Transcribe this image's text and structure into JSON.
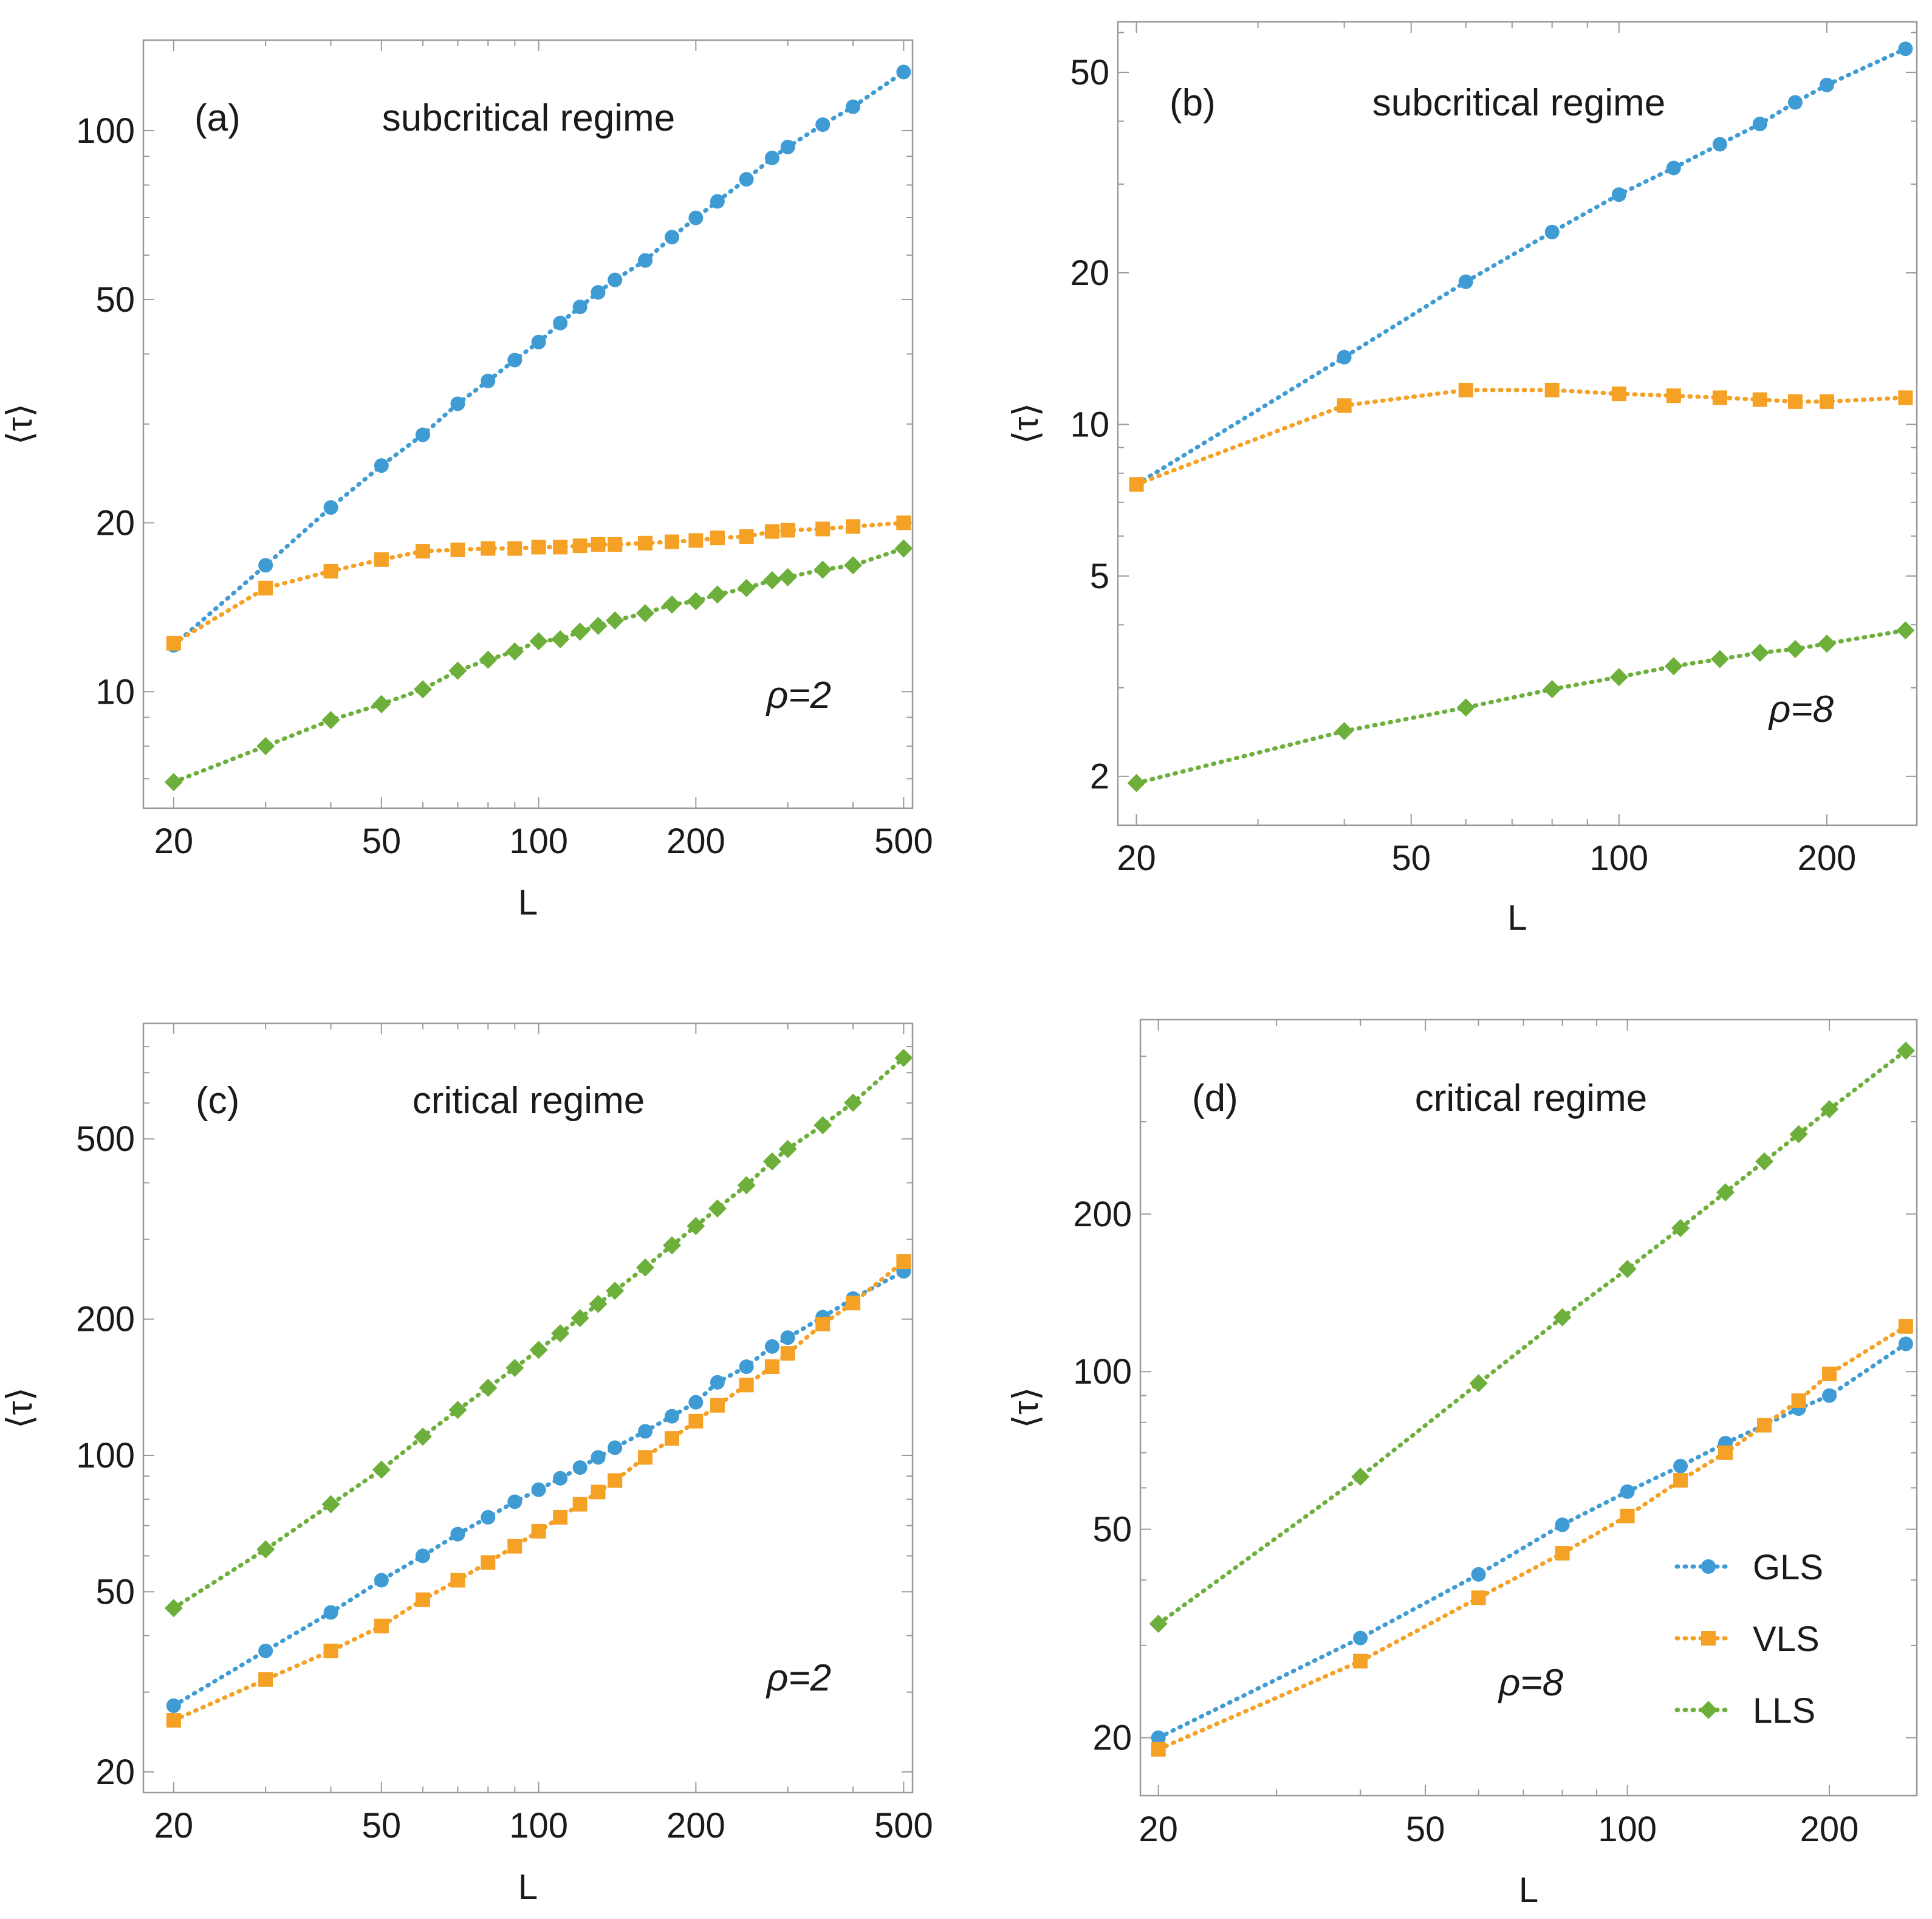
{
  "colors": {
    "GLS": "#3e9bd3",
    "VLS": "#f4a125",
    "LLS": "#6daf3b",
    "frame": "#9a9a9a"
  },
  "legend": {
    "placement": "bottom-right of panel (d)",
    "entries": [
      {
        "name": "GLS",
        "marker": "circle"
      },
      {
        "name": "VLS",
        "marker": "square"
      },
      {
        "name": "LLS",
        "marker": "diamond"
      }
    ]
  },
  "chart_data": [
    {
      "type": "scatter",
      "id": "a",
      "panel_label": "(a)",
      "title": "subcritical regime",
      "annotation": "ρ=2",
      "xlabel": "L",
      "ylabel": "⟨τ⟩",
      "xscale": "log",
      "yscale": "log",
      "xlim": [
        17.5,
        520
      ],
      "ylim": [
        6.2,
        145
      ],
      "xticks": [
        20,
        50,
        100,
        200,
        500
      ],
      "yticks": [
        10,
        20,
        50,
        100
      ],
      "grid": false,
      "series": [
        {
          "name": "GLS",
          "marker": "circle",
          "x": [
            20,
            30,
            40,
            50,
            60,
            70,
            80,
            90,
            100,
            110,
            120,
            130,
            140,
            160,
            180,
            200,
            220,
            250,
            280,
            300,
            350,
            400,
            500
          ],
          "y": [
            12.1,
            16.8,
            21.3,
            25.3,
            28.7,
            32.6,
            35.8,
            39.0,
            42.0,
            45.4,
            48.5,
            51.5,
            54.2,
            58.7,
            64.6,
            69.9,
            74.8,
            81.9,
            89.4,
            93.5,
            102.5,
            110.3,
            127.2
          ]
        },
        {
          "name": "VLS",
          "marker": "square",
          "x": [
            20,
            30,
            40,
            50,
            60,
            70,
            80,
            90,
            100,
            110,
            120,
            130,
            140,
            160,
            180,
            200,
            220,
            250,
            280,
            300,
            350,
            400,
            500
          ],
          "y": [
            12.2,
            15.3,
            16.4,
            17.2,
            17.8,
            17.9,
            18.0,
            18.0,
            18.1,
            18.1,
            18.2,
            18.3,
            18.3,
            18.4,
            18.5,
            18.6,
            18.8,
            18.9,
            19.3,
            19.4,
            19.5,
            19.7,
            20.0
          ]
        },
        {
          "name": "LLS",
          "marker": "diamond",
          "x": [
            20,
            30,
            40,
            50,
            60,
            70,
            80,
            90,
            100,
            110,
            120,
            130,
            140,
            160,
            180,
            200,
            220,
            250,
            280,
            300,
            350,
            400,
            500
          ],
          "y": [
            6.9,
            8.0,
            8.9,
            9.5,
            10.1,
            10.9,
            11.4,
            11.8,
            12.3,
            12.4,
            12.8,
            13.1,
            13.4,
            13.8,
            14.3,
            14.5,
            14.9,
            15.3,
            15.8,
            16.0,
            16.5,
            16.8,
            18.0
          ]
        }
      ]
    },
    {
      "type": "scatter",
      "id": "b",
      "panel_label": "(b)",
      "title": "subcritical regime",
      "annotation": "ρ=8",
      "xlabel": "L",
      "ylabel": "⟨τ⟩",
      "xscale": "log",
      "yscale": "log",
      "xlim": [
        18.8,
        270
      ],
      "ylim": [
        1.6,
        63
      ],
      "xticks": [
        20,
        50,
        100,
        200
      ],
      "yticks": [
        2,
        5,
        10,
        20,
        50
      ],
      "grid": false,
      "series": [
        {
          "name": "GLS",
          "marker": "circle",
          "x": [
            20,
            40,
            60,
            80,
            100,
            120,
            140,
            160,
            180,
            200,
            260
          ],
          "y": [
            7.6,
            13.6,
            19.2,
            24.1,
            28.6,
            32.3,
            36.0,
            39.5,
            43.6,
            47.2,
            55.7
          ]
        },
        {
          "name": "VLS",
          "marker": "square",
          "x": [
            20,
            40,
            60,
            80,
            100,
            120,
            140,
            160,
            180,
            200,
            260
          ],
          "y": [
            7.6,
            10.9,
            11.7,
            11.7,
            11.5,
            11.4,
            11.3,
            11.2,
            11.1,
            11.1,
            11.3
          ]
        },
        {
          "name": "LLS",
          "marker": "diamond",
          "x": [
            20,
            40,
            60,
            80,
            100,
            120,
            140,
            160,
            180,
            200,
            260
          ],
          "y": [
            1.94,
            2.46,
            2.74,
            2.98,
            3.15,
            3.31,
            3.42,
            3.52,
            3.58,
            3.67,
            3.9
          ]
        }
      ]
    },
    {
      "type": "scatter",
      "id": "c",
      "panel_label": "(c)",
      "title": "critical regime",
      "annotation": "ρ=2",
      "xlabel": "L",
      "ylabel": "⟨τ⟩",
      "xscale": "log",
      "yscale": "log",
      "xlim": [
        17.5,
        520
      ],
      "ylim": [
        18,
        900
      ],
      "xticks": [
        20,
        50,
        100,
        200,
        500
      ],
      "yticks": [
        20,
        50,
        100,
        200,
        500
      ],
      "grid": false,
      "series": [
        {
          "name": "GLS",
          "marker": "circle",
          "x": [
            20,
            30,
            40,
            50,
            60,
            70,
            80,
            90,
            100,
            110,
            120,
            130,
            140,
            160,
            180,
            200,
            220,
            250,
            280,
            300,
            350,
            400,
            500
          ],
          "y": [
            28,
            37,
            45,
            53,
            60,
            67,
            73,
            79,
            84,
            89,
            94,
            99,
            104,
            113,
            122,
            131,
            145,
            157,
            174,
            182,
            202,
            222,
            255
          ]
        },
        {
          "name": "VLS",
          "marker": "square",
          "x": [
            20,
            30,
            40,
            50,
            60,
            70,
            80,
            90,
            100,
            110,
            120,
            130,
            140,
            160,
            180,
            200,
            220,
            250,
            280,
            300,
            350,
            400,
            500
          ],
          "y": [
            26,
            32,
            37,
            42,
            48,
            53,
            58,
            63,
            68,
            73,
            78,
            83,
            88,
            99,
            109,
            119,
            129,
            143,
            157,
            168,
            195,
            217,
            268
          ]
        },
        {
          "name": "LLS",
          "marker": "diamond",
          "x": [
            20,
            30,
            40,
            50,
            60,
            70,
            80,
            90,
            100,
            110,
            120,
            130,
            140,
            160,
            180,
            200,
            220,
            250,
            280,
            300,
            350,
            400,
            500
          ],
          "y": [
            46,
            62,
            78,
            93,
            110,
            126,
            141,
            156,
            171,
            186,
            201,
            216,
            231,
            260,
            291,
            321,
            351,
            395,
            446,
            475,
            536,
            601,
            755
          ]
        }
      ]
    },
    {
      "type": "scatter",
      "id": "d",
      "panel_label": "(d)",
      "title": "critical regime",
      "annotation": "ρ=8",
      "xlabel": "L",
      "ylabel": "⟨τ⟩",
      "xscale": "log",
      "yscale": "log",
      "xlim": [
        18.8,
        270
      ],
      "ylim": [
        15.5,
        470
      ],
      "xticks": [
        20,
        50,
        100,
        200
      ],
      "yticks": [
        20,
        50,
        100,
        200
      ],
      "grid": false,
      "series": [
        {
          "name": "GLS",
          "marker": "circle",
          "x": [
            20,
            40,
            60,
            80,
            100,
            120,
            140,
            160,
            180,
            200,
            260
          ],
          "y": [
            20,
            31,
            41,
            51,
            59,
            66,
            73,
            79,
            85,
            90,
            113
          ]
        },
        {
          "name": "VLS",
          "marker": "square",
          "x": [
            20,
            40,
            60,
            80,
            100,
            120,
            140,
            160,
            180,
            200,
            260
          ],
          "y": [
            19,
            28,
            37,
            45,
            53,
            62,
            70,
            79,
            88,
            99,
            122
          ]
        },
        {
          "name": "LLS",
          "marker": "diamond",
          "x": [
            20,
            40,
            60,
            80,
            100,
            120,
            140,
            160,
            180,
            200,
            260
          ],
          "y": [
            33,
            63,
            95,
            127,
            157,
            188,
            220,
            252,
            284,
            317,
            410
          ]
        }
      ]
    }
  ]
}
